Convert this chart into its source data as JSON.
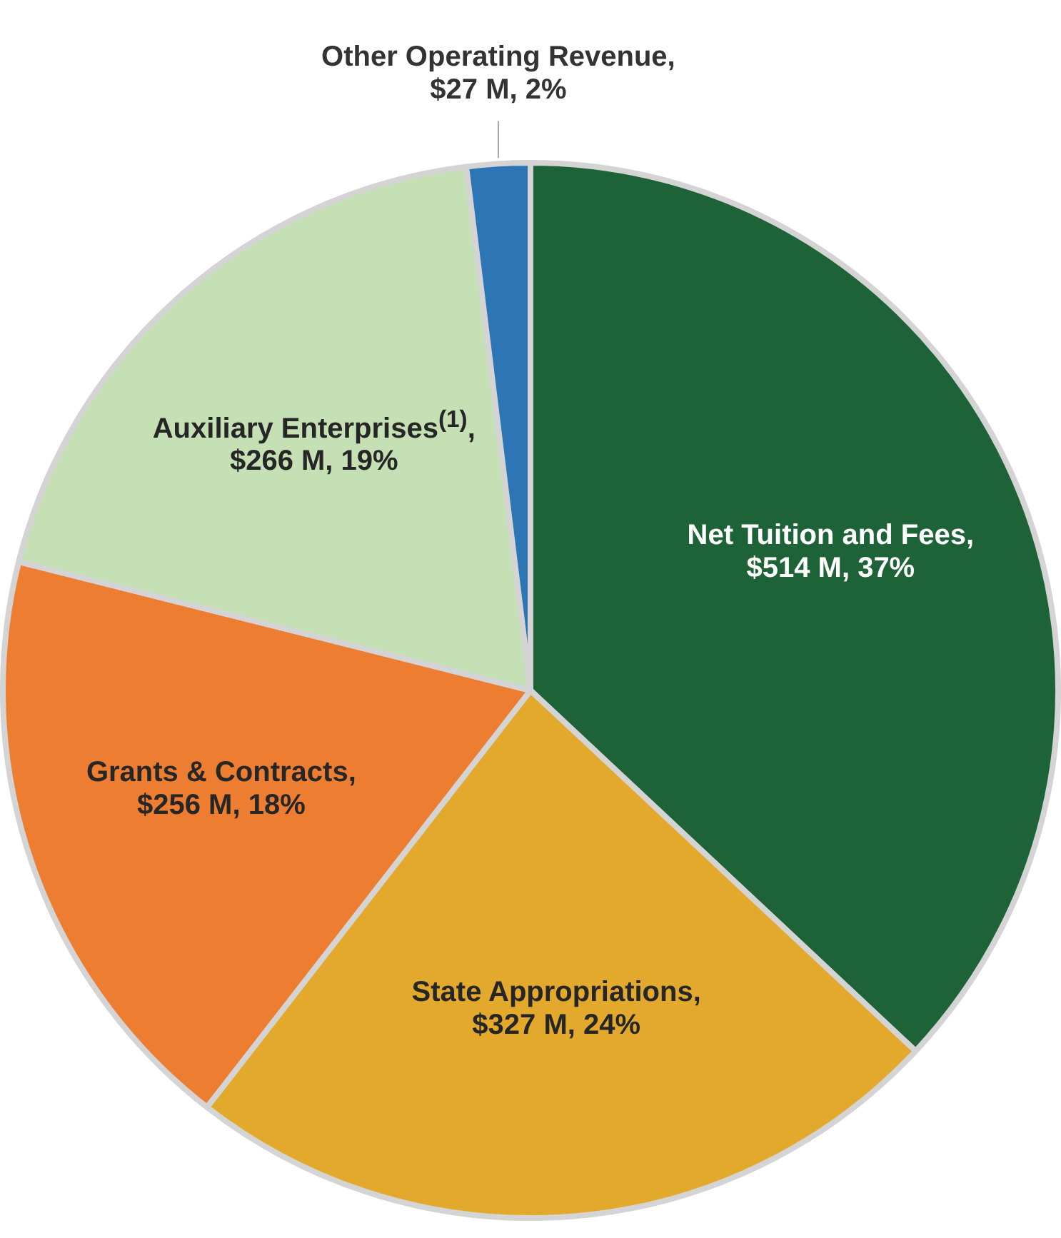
{
  "chart_data": {
    "type": "pie",
    "categories": [
      "Net Tuition and Fees",
      "State Appropriations",
      "Grants & Contracts",
      "Auxiliary Enterprises$^{(1)}$",
      "Other Operating Revenue"
    ],
    "values": [
      514,
      327,
      256,
      266,
      27
    ],
    "value_labels": [
      ", $514 M, 37%",
      ", $327 M, 24%",
      ", $256 M, 18%",
      ", $266 M, 19%",
      ", $27 M, 2%"
    ],
    "colors": [
      "#1e6337",
      "#e3a92c",
      "#ed7d31",
      "#c5e0b4",
      "#2e75b6"
    ],
    "legend": false
  }
}
